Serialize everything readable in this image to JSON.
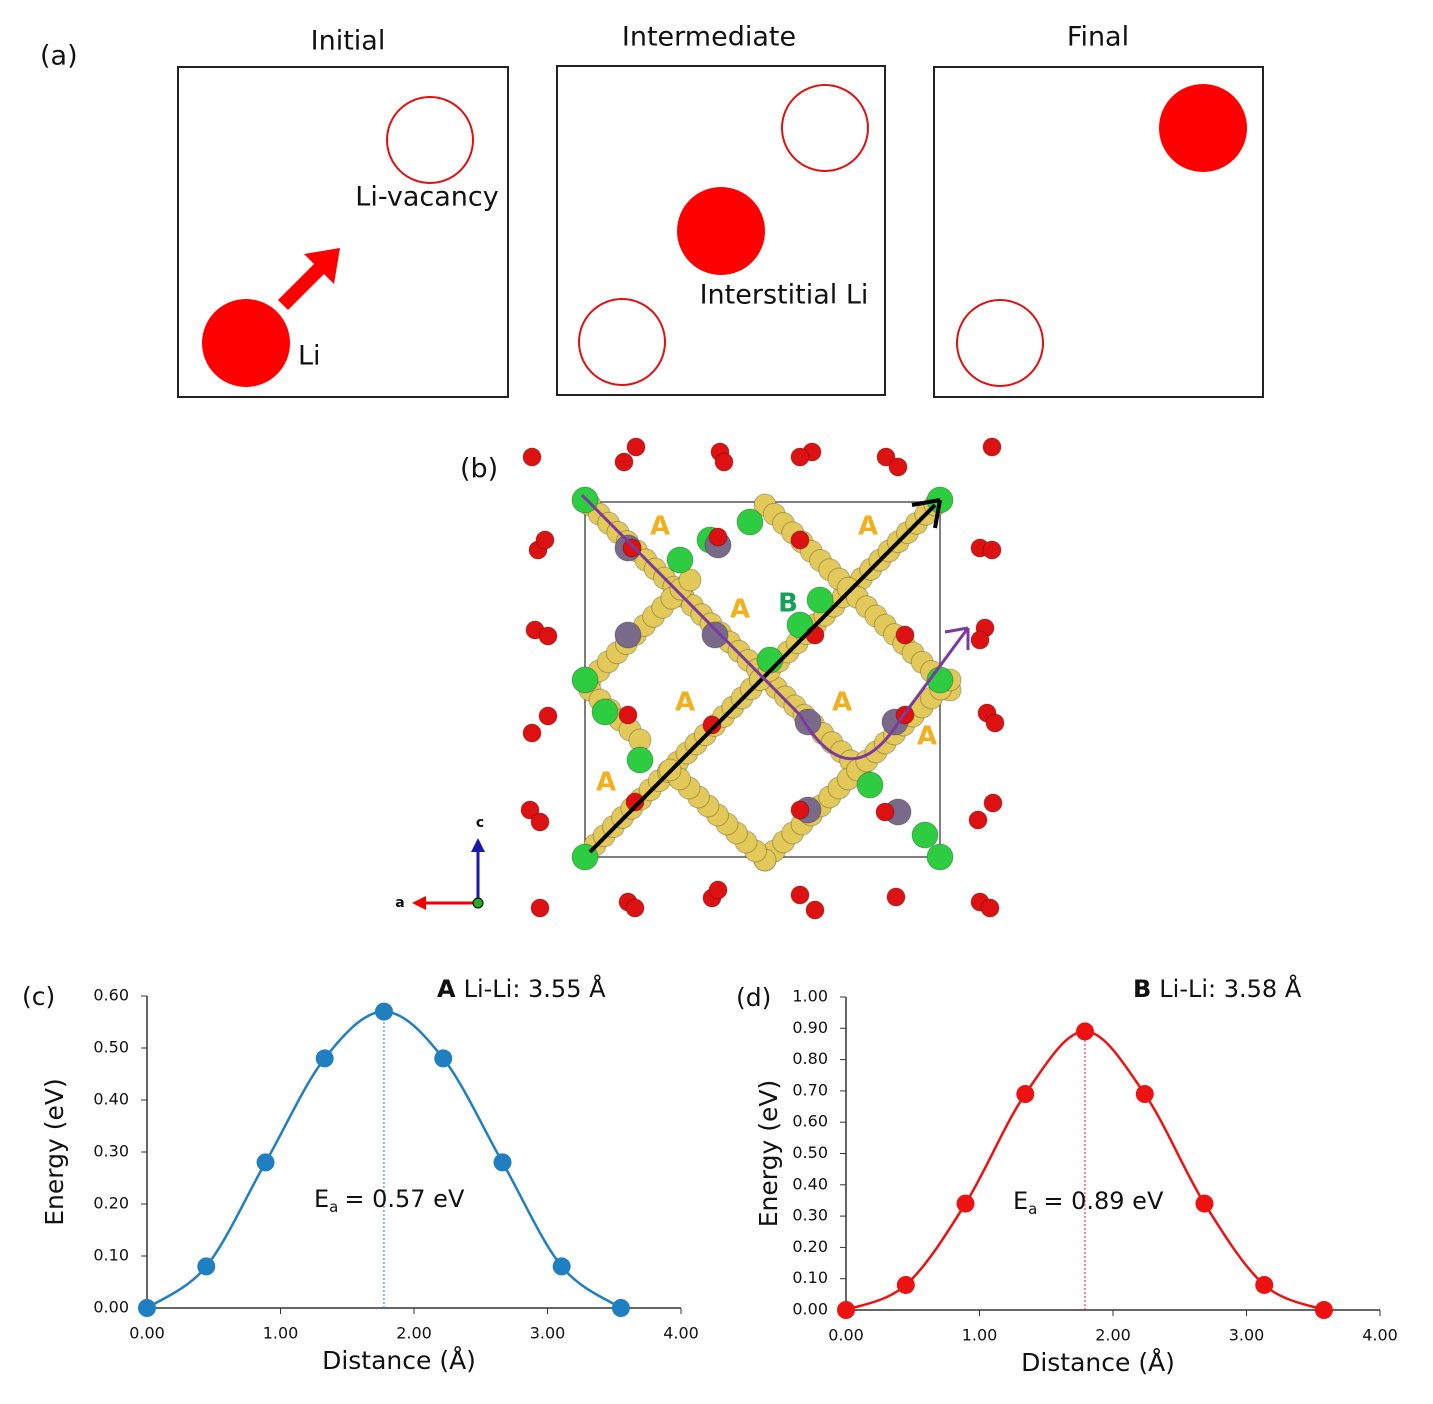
{
  "diagram": {
    "label": "(a)",
    "panels": [
      {
        "title": "Initial",
        "labels": [
          "Li-vacancy",
          "Li"
        ]
      },
      {
        "title": "Intermediate",
        "labels": [
          "Interstitial Li"
        ]
      },
      {
        "title": "Final"
      }
    ]
  },
  "structure": {
    "label": "(b)",
    "sites": [
      "A",
      "A",
      "A",
      "A",
      "A",
      "A",
      "A",
      "B"
    ],
    "axes": [
      "a",
      "c"
    ]
  },
  "chart_data": [
    {
      "type": "line",
      "panel": "(c)",
      "title_bold": "A",
      "title": "Li-Li: 3.55 Å",
      "xlabel": "Distance (Å)",
      "ylabel": "Energy (eV)",
      "x": [
        0,
        0.444,
        0.888,
        1.331,
        1.775,
        2.219,
        2.663,
        3.106,
        3.55
      ],
      "series": [
        {
          "color": "#1f7fc0",
          "values": [
            0,
            0.08,
            0.28,
            0.48,
            0.57,
            0.48,
            0.28,
            0.08,
            0
          ]
        }
      ],
      "annotation": {
        "symbol": "E",
        "subscript": "a",
        "text": "= 0.57 eV"
      },
      "xlim": [
        0,
        4
      ],
      "ylim": [
        0,
        0.6
      ],
      "xticks": [
        {
          "value": 0,
          "label": "0.00"
        },
        {
          "value": 1,
          "label": "1.00"
        },
        {
          "value": 2,
          "label": "2.00"
        },
        {
          "value": 3,
          "label": "3.00"
        },
        {
          "value": 4,
          "label": "4.00"
        }
      ],
      "yticks": [
        {
          "value": 0,
          "label": "0.00"
        },
        {
          "value": 0.1,
          "label": "0.10"
        },
        {
          "value": 0.2,
          "label": "0.20"
        },
        {
          "value": 0.3,
          "label": "0.30"
        },
        {
          "value": 0.4,
          "label": "0.40"
        },
        {
          "value": 0.5,
          "label": "0.50"
        },
        {
          "value": 0.6,
          "label": "0.60"
        }
      ]
    },
    {
      "type": "line",
      "panel": "(d)",
      "title_bold": "B",
      "title": "Li-Li: 3.58 Å",
      "xlabel": "Distance (Å)",
      "ylabel": "Energy (eV)",
      "x": [
        0,
        0.448,
        0.895,
        1.343,
        1.79,
        2.238,
        2.685,
        3.133,
        3.58
      ],
      "series": [
        {
          "color": "#ee1111",
          "values": [
            0,
            0.08,
            0.34,
            0.69,
            0.89,
            0.69,
            0.34,
            0.08,
            0
          ]
        }
      ],
      "annotation": {
        "symbol": "E",
        "subscript": "a",
        "text": "= 0.89 eV"
      },
      "xlim": [
        0,
        4
      ],
      "ylim": [
        0,
        1
      ],
      "xticks": [
        {
          "value": 0,
          "label": "0.00"
        },
        {
          "value": 1,
          "label": "1.00"
        },
        {
          "value": 2,
          "label": "2.00"
        },
        {
          "value": 3,
          "label": "3.00"
        },
        {
          "value": 4,
          "label": "4.00"
        }
      ],
      "yticks": [
        {
          "value": 0,
          "label": "0.00"
        },
        {
          "value": 0.1,
          "label": "0.10"
        },
        {
          "value": 0.2,
          "label": "0.20"
        },
        {
          "value": 0.3,
          "label": "0.30"
        },
        {
          "value": 0.4,
          "label": "0.40"
        },
        {
          "value": 0.5,
          "label": "0.50"
        },
        {
          "value": 0.6,
          "label": "0.60"
        },
        {
          "value": 0.7,
          "label": "0.70"
        },
        {
          "value": 0.8,
          "label": "0.80"
        },
        {
          "value": 0.9,
          "label": "0.90"
        },
        {
          "value": 1,
          "label": "1.00"
        }
      ]
    }
  ]
}
